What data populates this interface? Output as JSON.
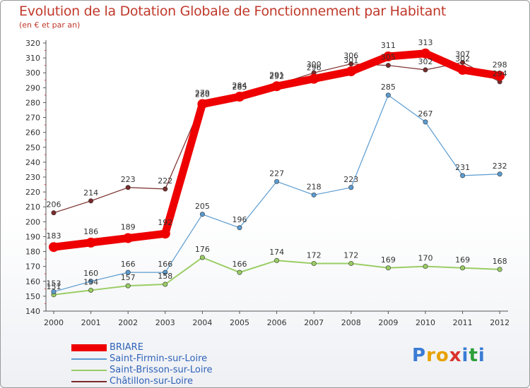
{
  "header": {
    "title": "Evolution de la Dotation Globale de Fonctionnement par Habitant",
    "subtitle": "(en € et par an)"
  },
  "logo": {
    "letters": [
      "P",
      "r",
      "o",
      "x",
      "i",
      "t",
      "i"
    ],
    "colors": [
      "#3a7bd5",
      "#e8a100",
      "#e8a100",
      "#d9342b",
      "#3a7bd5",
      "#2c9f3a",
      "#3a7bd5"
    ]
  },
  "chart_data": {
    "type": "line",
    "title": "Evolution de la Dotation Globale de Fonctionnement par Habitant",
    "subtitle": "(en € et par an)",
    "xlabel": "",
    "ylabel": "",
    "ylim": [
      140,
      320
    ],
    "yticks": [
      140,
      150,
      160,
      170,
      180,
      190,
      200,
      210,
      220,
      230,
      240,
      250,
      260,
      270,
      280,
      290,
      300,
      310,
      320
    ],
    "grid": false,
    "legend_position": "bottom-left",
    "categories": [
      "2000",
      "2001",
      "2002",
      "2003",
      "2004",
      "2005",
      "2006",
      "2007",
      "2008",
      "2009",
      "2010",
      "2011",
      "2012"
    ],
    "series": [
      {
        "name": "BRIARE",
        "color": "#ee0000",
        "width": 11,
        "values": [
          183,
          186,
          189,
          192,
          279,
          284,
          291,
          296,
          301,
          311,
          313,
          302,
          298
        ]
      },
      {
        "name": "Saint-Firmin-sur-Loire",
        "color": "#5b9bd0",
        "width": 1.2,
        "values": [
          153,
          160,
          166,
          166,
          205,
          196,
          227,
          218,
          223,
          285,
          267,
          231,
          232
        ]
      },
      {
        "name": "Saint-Brisson-sur-Loire",
        "color": "#9acd65",
        "width": 2,
        "values": [
          151,
          154,
          157,
          158,
          176,
          166,
          174,
          172,
          172,
          169,
          170,
          169,
          168
        ]
      },
      {
        "name": "Châtillon-sur-Loire",
        "color": "#7a2a2a",
        "width": 1.2,
        "values": [
          206,
          214,
          223,
          222,
          280,
          285,
          292,
          300,
          306,
          305,
          302,
          307,
          294
        ]
      }
    ]
  }
}
